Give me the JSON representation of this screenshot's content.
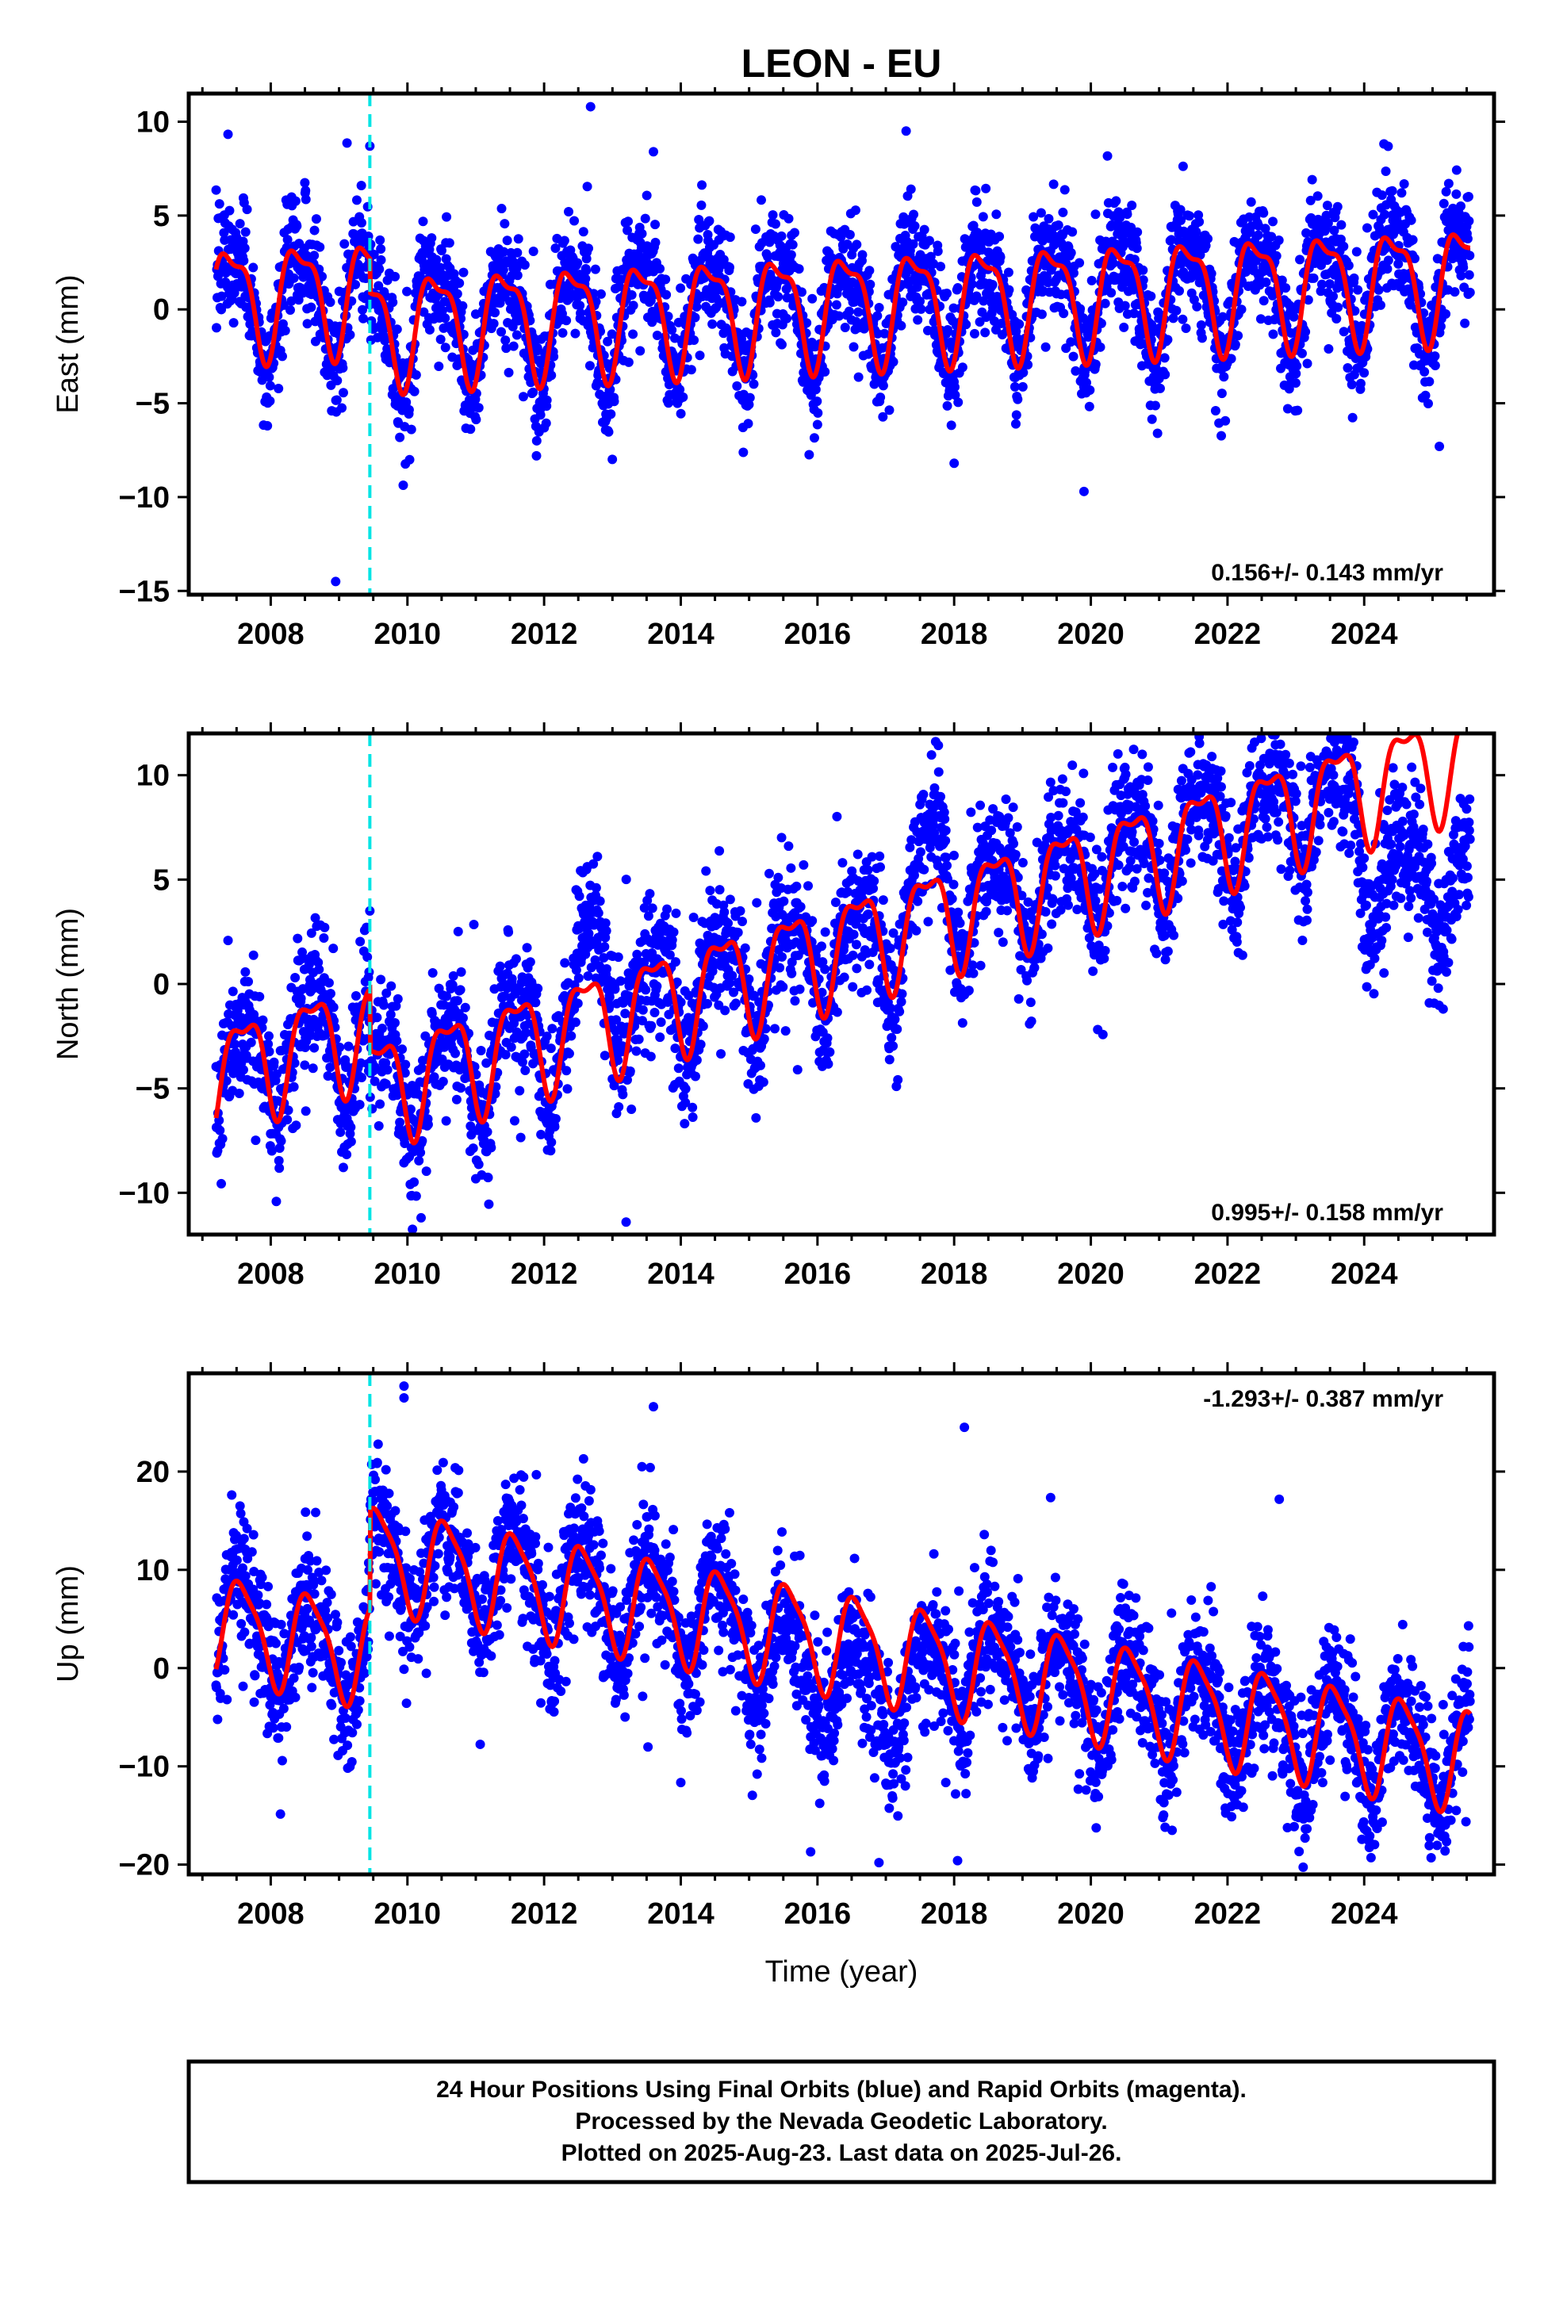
{
  "title": "LEON - EU",
  "footer": {
    "lines": [
      "24 Hour Positions Using Final Orbits (blue) and Rapid Orbits (magenta).",
      "Processed by the Nevada Geodetic Laboratory.",
      "Plotted on 2025-Aug-23. Last data on 2025-Jul-26."
    ]
  },
  "colors": {
    "points": "#0000ff",
    "model": "#ff0000",
    "event_line": "#00e5e5",
    "frame": "#000000"
  },
  "chart_data": [
    {
      "type": "scatter",
      "name": "east",
      "ylabel": "East (mm)",
      "xlabel": "",
      "xlim": [
        2006.8,
        2025.9
      ],
      "ylim": [
        -15.2,
        11.5
      ],
      "yticks": [
        10,
        5,
        0,
        -5,
        -10,
        -15
      ],
      "ytick_labels": [
        "10",
        "5",
        "0",
        "−5",
        "−10",
        "−15"
      ],
      "xticks": [
        2008,
        2010,
        2012,
        2014,
        2016,
        2018,
        2020,
        2022,
        2024
      ],
      "xtick_labels": [
        "2008",
        "2010",
        "2012",
        "2014",
        "2016",
        "2018",
        "2020",
        "2022",
        "2024"
      ],
      "event_line_x": 2009.45,
      "rate_label": "0.156+/- 0.143 mm/yr",
      "rate_label_position": "bottom-right",
      "data_range": [
        2007.2,
        2025.55
      ],
      "model": {
        "trend_start": 0.6,
        "rate": 0.156,
        "annual_amp": 2.8,
        "annual_phase_peak": 0.42,
        "semiannual_amp": 1.0,
        "semiannual_phase_peak": 0.2,
        "offset_at_event": -1.8
      },
      "scatter": {
        "sd": 1.5,
        "outlier_rate": 0.01
      },
      "notable_points": [
        [
          2008.95,
          -14.5
        ],
        [
          2012.68,
          10.8
        ],
        [
          2013.6,
          8.4
        ],
        [
          2019.9,
          -9.7
        ],
        [
          2025.1,
          -7.3
        ],
        [
          2009.45,
          8.7
        ],
        [
          2018.0,
          -8.2
        ]
      ]
    },
    {
      "type": "scatter",
      "name": "north",
      "ylabel": "North (mm)",
      "xlabel": "",
      "xlim": [
        2006.8,
        2025.9
      ],
      "ylim": [
        -12.0,
        12.0
      ],
      "yticks": [
        10,
        5,
        0,
        -5,
        -10
      ],
      "ytick_labels": [
        "10",
        "5",
        "0",
        "−5",
        "−10"
      ],
      "xticks": [
        2008,
        2010,
        2012,
        2014,
        2016,
        2018,
        2020,
        2022,
        2024
      ],
      "xtick_labels": [
        "2008",
        "2010",
        "2012",
        "2014",
        "2016",
        "2018",
        "2020",
        "2022",
        "2024"
      ],
      "event_line_x": 2009.45,
      "rate_label": "0.995+/- 0.158 mm/yr",
      "rate_label_position": "bottom-right",
      "data_range": [
        2007.2,
        2025.55
      ],
      "model": {
        "trend_start": -4.2,
        "rate": 0.995,
        "annual_amp": 2.4,
        "annual_phase_peak": 0.6,
        "semiannual_amp": 0.9,
        "semiannual_phase_peak": 0.35,
        "offset_at_event": -3.0
      },
      "scatter": {
        "sd": 1.6,
        "outlier_rate": 0.01
      },
      "data_deviation": [
        [
          2012.4,
          0
        ],
        [
          2012.6,
          3.5
        ],
        [
          2013.0,
          2.0
        ],
        [
          2013.3,
          0
        ],
        [
          2017.3,
          0
        ],
        [
          2017.7,
          3.0
        ],
        [
          2018.2,
          0
        ],
        [
          2023.6,
          0
        ],
        [
          2024.2,
          -4.5
        ],
        [
          2024.8,
          -5.5
        ],
        [
          2025.55,
          -6.0
        ]
      ],
      "notable_points": [
        [
          2010.2,
          -11.2
        ],
        [
          2013.2,
          -11.4
        ],
        [
          2023.6,
          11.2
        ],
        [
          2022.7,
          11.0
        ],
        [
          2009.45,
          3.5
        ]
      ]
    },
    {
      "type": "scatter",
      "name": "up",
      "ylabel": "Up (mm)",
      "xlabel": "Time (year)",
      "xlim": [
        2006.8,
        2025.9
      ],
      "ylim": [
        -21.0,
        30.0
      ],
      "yticks": [
        20,
        10,
        0,
        -10,
        -20
      ],
      "ytick_labels": [
        "20",
        "10",
        "0",
        "−10",
        "−20"
      ],
      "xticks": [
        2008,
        2010,
        2012,
        2014,
        2016,
        2018,
        2020,
        2022,
        2024
      ],
      "xtick_labels": [
        "2008",
        "2010",
        "2012",
        "2014",
        "2016",
        "2018",
        "2020",
        "2022",
        "2024"
      ],
      "event_line_x": 2009.45,
      "rate_label": "-1.293+/- 0.387 mm/yr",
      "rate_label_position": "top-right",
      "data_range": [
        2007.2,
        2025.55
      ],
      "model": {
        "trend_start": 4.5,
        "rate": -1.293,
        "annual_amp": 5.0,
        "annual_phase_peak": 0.58,
        "semiannual_amp": 1.2,
        "semiannual_phase_peak": 0.4,
        "offset_at_event": 10.0
      },
      "scatter": {
        "sd": 3.4,
        "outlier_rate": 0.012
      },
      "data_deviation": [
        [
          2014.8,
          0
        ],
        [
          2015.6,
          -4.0
        ],
        [
          2017.2,
          -4.5
        ],
        [
          2017.9,
          0
        ]
      ],
      "notable_points": [
        [
          2009.95,
          28.7
        ],
        [
          2009.95,
          27.5
        ],
        [
          2013.6,
          26.6
        ],
        [
          2018.15,
          24.5
        ],
        [
          2016.9,
          -19.8
        ],
        [
          2018.05,
          -19.6
        ],
        [
          2015.9,
          -18.7
        ],
        [
          2024.1,
          -19.3
        ]
      ]
    }
  ]
}
